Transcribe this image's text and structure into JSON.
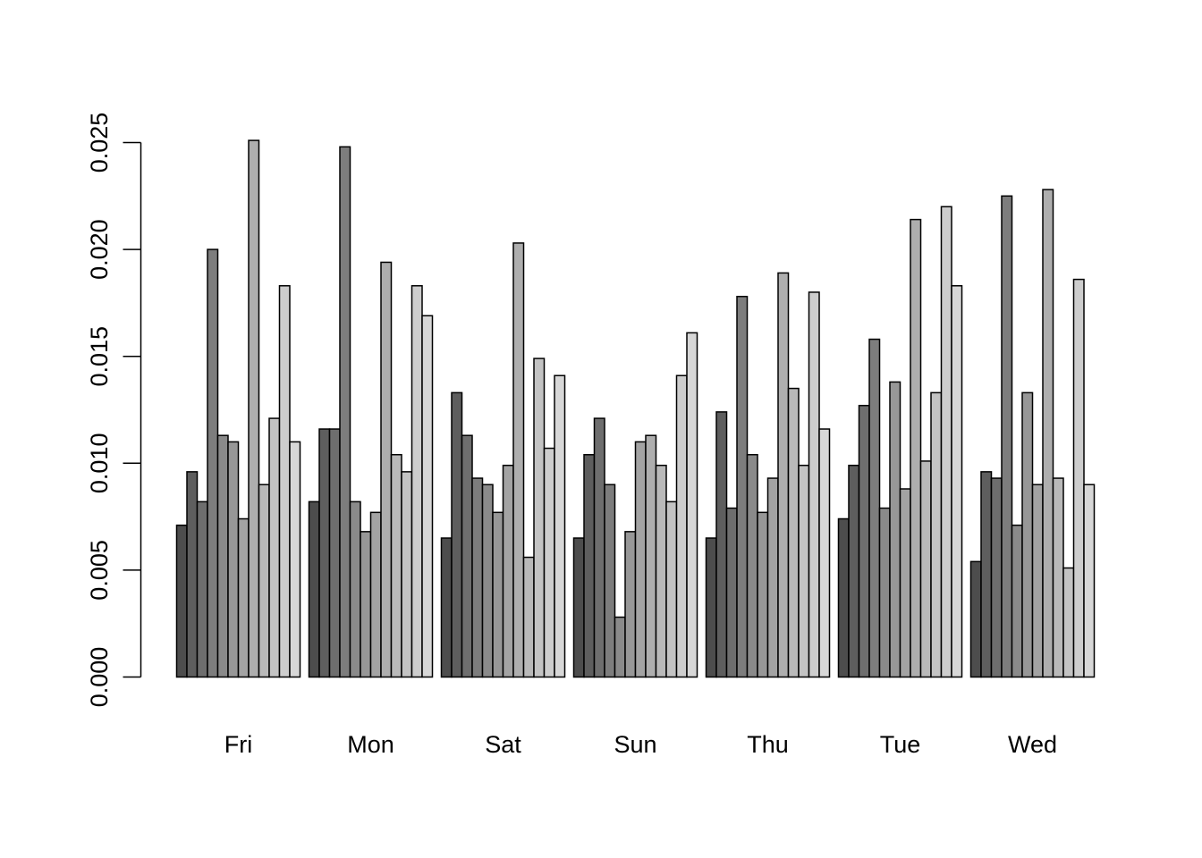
{
  "chart_data": {
    "type": "bar",
    "mode": "grouped",
    "title": "",
    "xlabel": "",
    "ylabel": "",
    "categories": [
      "Fri",
      "Mon",
      "Sat",
      "Sun",
      "Thu",
      "Tue",
      "Wed"
    ],
    "ylim": [
      0,
      0.025
    ],
    "yticks": [
      0.0,
      0.005,
      0.01,
      0.015,
      0.02,
      0.025
    ],
    "ytick_labels": [
      "0.000",
      "0.005",
      "0.010",
      "0.015",
      "0.020",
      "0.025"
    ],
    "grid": false,
    "legend": "none",
    "series_colors": [
      "#4d4d4d",
      "#5e5e5e",
      "#6e6e6e",
      "#7d7d7d",
      "#8a8a8a",
      "#979797",
      "#a3a3a3",
      "#aeaeae",
      "#b9b9b9",
      "#c3c3c3",
      "#cdcdcd",
      "#d7d7d7"
    ],
    "values": [
      [
        0.0071,
        0.0096,
        0.0082,
        0.02,
        0.0113,
        0.011,
        0.0074,
        0.0251,
        0.009,
        0.0121,
        0.0183,
        0.011
      ],
      [
        0.0082,
        0.0116,
        0.0116,
        0.0248,
        0.0082,
        0.0068,
        0.0077,
        0.0194,
        0.0104,
        0.0096,
        0.0183,
        0.0169
      ],
      [
        0.0065,
        0.0133,
        0.0113,
        0.0093,
        0.009,
        0.0077,
        0.0099,
        0.0203,
        0.0056,
        0.0149,
        0.0107,
        0.0141
      ],
      [
        0.0065,
        0.0104,
        0.0121,
        0.009,
        0.0028,
        0.0068,
        0.011,
        0.0113,
        0.0099,
        0.0082,
        0.0141,
        0.0161
      ],
      [
        0.0065,
        0.0124,
        0.0079,
        0.0178,
        0.0104,
        0.0077,
        0.0093,
        0.0189,
        0.0135,
        0.0099,
        0.018,
        0.0116
      ],
      [
        0.0074,
        0.0099,
        0.0127,
        0.0158,
        0.0079,
        0.0138,
        0.0088,
        0.0214,
        0.0101,
        0.0133,
        0.022,
        0.0183
      ],
      [
        0.0054,
        0.0096,
        0.0093,
        0.0225,
        0.0071,
        0.0133,
        0.009,
        0.0228,
        0.0093,
        0.0051,
        0.0186,
        0.009
      ]
    ]
  }
}
